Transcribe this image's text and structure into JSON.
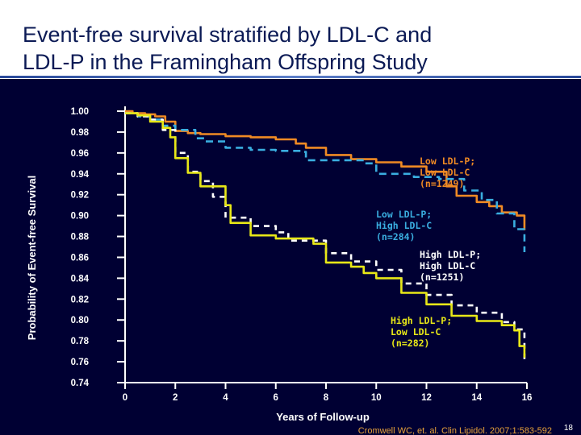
{
  "slide": {
    "title_lines": [
      "Event-free survival stratified by LDL-C and",
      "LDL-P in the Framingham Offspring Study"
    ],
    "citation": "Cromwell WC, et. al. Clin Lipidol. 2007;1:583-592",
    "page_number": "18",
    "colors": {
      "panel": "#000033",
      "title": "#0b1a55",
      "axis": "#ffffff"
    }
  },
  "chart_data": {
    "type": "line",
    "title": "",
    "xlabel": "Years of Follow-up",
    "ylabel": "Probability of Event-free Survival",
    "xlim": [
      0,
      16
    ],
    "ylim": [
      0.74,
      1.0
    ],
    "x_ticks": [
      "0",
      "2",
      "4",
      "6",
      "8",
      "10",
      "12",
      "14",
      "16"
    ],
    "y_ticks": [
      "0.74",
      "0.76",
      "0.78",
      "0.80",
      "0.82",
      "0.84",
      "0.86",
      "0.88",
      "0.90",
      "0.92",
      "0.94",
      "0.96",
      "0.98",
      "1.00"
    ],
    "grid": false,
    "series": [
      {
        "name": "Low LDL-P; Low LDL-C (n=1249)",
        "label_lines": [
          "Low LDL-P;",
          "Low LDL-C",
          "(n=1249)"
        ],
        "color": "#f08a24",
        "dash": "solid",
        "x": [
          0,
          0.3,
          0.8,
          1.2,
          1.6,
          2.0,
          2.5,
          3.0,
          4.0,
          5.0,
          6.0,
          6.8,
          7.2,
          8.0,
          9.0,
          10.0,
          11.0,
          12.0,
          12.8,
          13.2,
          14.0,
          14.5,
          15.0,
          15.6,
          15.9
        ],
        "y": [
          1.0,
          0.998,
          0.997,
          0.995,
          0.99,
          0.981,
          0.979,
          0.978,
          0.976,
          0.975,
          0.973,
          0.969,
          0.965,
          0.958,
          0.954,
          0.951,
          0.947,
          0.942,
          0.928,
          0.919,
          0.913,
          0.909,
          0.903,
          0.9,
          0.886
        ]
      },
      {
        "name": "Low LDL-P; High LDL-C (n=284)",
        "label_lines": [
          "Low LDL-P;",
          "High LDL-C",
          "(n=284)"
        ],
        "color": "#3aaee0",
        "dash": "long-dash",
        "x": [
          0,
          0.5,
          1.0,
          1.5,
          2.0,
          2.8,
          3.2,
          4.0,
          5.0,
          6.0,
          7.0,
          7.2,
          9.5,
          10.0,
          11.5,
          12.5,
          13.5,
          14.2,
          14.8,
          15.5,
          15.9
        ],
        "y": [
          0.998,
          0.995,
          0.992,
          0.986,
          0.982,
          0.974,
          0.971,
          0.965,
          0.963,
          0.962,
          0.961,
          0.953,
          0.95,
          0.94,
          0.937,
          0.935,
          0.924,
          0.915,
          0.902,
          0.887,
          0.865
        ]
      },
      {
        "name": "High LDL-P; High LDL-C (n=1251)",
        "label_lines": [
          "High LDL-P;",
          "High LDL-C",
          "(n=1251)"
        ],
        "color": "#ffffff",
        "dash": "short-dash",
        "x": [
          0,
          0.5,
          1.0,
          1.5,
          2.0,
          2.5,
          3.0,
          3.5,
          4.0,
          5.0,
          6.0,
          6.5,
          8.0,
          9.0,
          10.0,
          11.0,
          12.0,
          13.0,
          14.0,
          15.0,
          15.5,
          15.9
        ],
        "y": [
          0.998,
          0.995,
          0.992,
          0.982,
          0.96,
          0.942,
          0.933,
          0.918,
          0.898,
          0.89,
          0.884,
          0.876,
          0.864,
          0.856,
          0.848,
          0.835,
          0.824,
          0.814,
          0.807,
          0.798,
          0.791,
          0.762
        ]
      },
      {
        "name": "High LDL-P; Low LDL-C (n=282)",
        "label_lines": [
          "High LDL-P;",
          "Low LDL-C",
          "(n=282)"
        ],
        "color": "#e8e817",
        "dash": "solid",
        "x": [
          0,
          0.5,
          1.0,
          1.5,
          1.8,
          2.0,
          2.5,
          3.0,
          4.0,
          4.2,
          5.0,
          6.0,
          7.5,
          8.0,
          9.0,
          9.5,
          10.0,
          11.0,
          12.0,
          13.0,
          14.0,
          15.0,
          15.5,
          15.7,
          15.9
        ],
        "y": [
          0.998,
          0.996,
          0.99,
          0.984,
          0.975,
          0.955,
          0.941,
          0.928,
          0.91,
          0.893,
          0.881,
          0.878,
          0.873,
          0.855,
          0.851,
          0.845,
          0.84,
          0.826,
          0.815,
          0.804,
          0.799,
          0.795,
          0.79,
          0.775,
          0.764
        ]
      }
    ]
  }
}
